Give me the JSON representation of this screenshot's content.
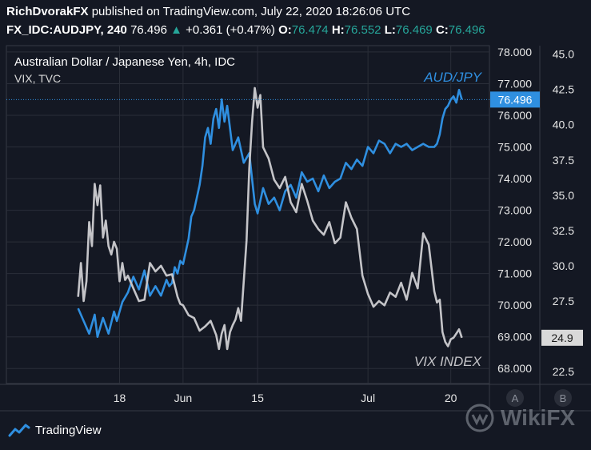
{
  "header": {
    "author": "RichDvorakFX",
    "published": "published on TradingView.com, July 22, 2020 18:26:06 UTC",
    "symbol": "FX_IDC:AUDJPY, 240",
    "last": "76.496",
    "change_arrow": "▲",
    "change": "+0.361 (+0.47%)",
    "o_label": "O:",
    "o_value": "76.474",
    "h_label": "H:",
    "h_value": "76.552",
    "l_label": "L:",
    "l_value": "76.469",
    "c_label": "C:",
    "c_value": "76.496"
  },
  "footer": {
    "brand": "TradingView",
    "brand_icon": "tradingview-logo-icon"
  },
  "watermark": {
    "text": "WikiFX",
    "icon": "wikifx-logo-icon"
  },
  "colors": {
    "background": "#141823",
    "grid": "#2a2e39",
    "audjpy": "#2f8fe0",
    "vix": "#c4c4c8",
    "up": "#26a69a",
    "axis_text": "#e6e6e6"
  },
  "chart_data": {
    "type": "line",
    "title": "Australian Dollar / Japanese Yen, 4h, IDC",
    "subtitle": "VIX, TVC",
    "x_tick_labels": [
      "18",
      "Jun",
      "15",
      "Jul",
      "20"
    ],
    "x_ticks_x": [
      41,
      64,
      91,
      131,
      161
    ],
    "x_range": [
      0,
      175
    ],
    "grid": true,
    "left_axis": {
      "series": "AUD/JPY",
      "range": [
        67.5,
        78.2
      ],
      "ticks": [
        68.0,
        69.0,
        70.0,
        71.0,
        72.0,
        73.0,
        74.0,
        75.0,
        76.0,
        77.0,
        78.0
      ]
    },
    "right_axis": {
      "series": "VIX INDEX",
      "range": [
        21.6,
        45.6
      ],
      "ticks": [
        22.5,
        25.0,
        27.5,
        30.0,
        32.5,
        35.0,
        37.5,
        40.0,
        42.5,
        45.0
      ]
    },
    "last_price_label": "76.496",
    "last_price_value": 76.496,
    "vix_last_label": "24.9",
    "vix_last_value": 24.9,
    "series": [
      {
        "name": "AUD/JPY",
        "axis": "left",
        "x": [
          26,
          28,
          30,
          32,
          33,
          35,
          37,
          39,
          40,
          42,
          44,
          46,
          48,
          50,
          52,
          54,
          56,
          58,
          59,
          60,
          61,
          62,
          63,
          64,
          66,
          67,
          68,
          70,
          71,
          72,
          73,
          74,
          75,
          76,
          77,
          78,
          79,
          80,
          82,
          84,
          86,
          88,
          90,
          91,
          93,
          95,
          97,
          99,
          101,
          103,
          105,
          107,
          109,
          111,
          113,
          115,
          117,
          119,
          121,
          123,
          125,
          127,
          129,
          131,
          133,
          135,
          137,
          139,
          141,
          143,
          145,
          147,
          149,
          151,
          153,
          155,
          156,
          157,
          158,
          159,
          160,
          161,
          162,
          163,
          164,
          165
        ],
        "values": [
          69.9,
          69.5,
          69.1,
          69.7,
          69.0,
          69.6,
          69.1,
          69.8,
          69.5,
          70.1,
          70.4,
          70.9,
          70.5,
          71.1,
          70.3,
          70.6,
          70.3,
          70.8,
          70.6,
          70.7,
          71.2,
          71.0,
          71.4,
          71.3,
          72.1,
          72.8,
          73.0,
          73.8,
          74.4,
          75.3,
          75.6,
          75.1,
          75.9,
          76.2,
          75.6,
          76.5,
          75.8,
          76.3,
          74.9,
          75.3,
          74.5,
          74.8,
          73.2,
          72.9,
          73.7,
          73.2,
          73.4,
          73.0,
          73.6,
          73.8,
          73.4,
          74.2,
          73.9,
          74.0,
          73.6,
          74.1,
          73.7,
          73.9,
          74.0,
          74.5,
          74.3,
          74.6,
          74.4,
          75.0,
          74.8,
          75.2,
          75.1,
          74.8,
          75.1,
          75.0,
          75.1,
          74.9,
          75.0,
          75.1,
          75.0,
          75.0,
          75.1,
          75.4,
          75.9,
          76.2,
          76.3,
          76.5,
          76.6,
          76.4,
          76.8,
          76.5
        ]
      },
      {
        "name": "VIX INDEX",
        "axis": "right",
        "x": [
          26,
          27,
          28,
          29,
          30,
          31,
          32,
          33,
          34,
          35,
          36,
          37,
          38,
          39,
          40,
          41,
          42,
          43,
          44,
          46,
          48,
          50,
          52,
          54,
          56,
          58,
          60,
          62,
          63,
          64,
          66,
          68,
          70,
          72,
          74,
          76,
          77,
          78,
          79,
          80,
          81,
          82,
          83,
          84,
          85,
          86,
          87,
          88,
          89,
          90,
          91,
          92,
          93,
          95,
          97,
          99,
          101,
          103,
          105,
          107,
          109,
          111,
          113,
          115,
          117,
          119,
          121,
          123,
          125,
          127,
          129,
          131,
          133,
          135,
          137,
          139,
          141,
          143,
          145,
          147,
          149,
          151,
          153,
          155,
          156,
          157,
          158,
          159,
          160,
          161,
          162,
          163,
          164,
          165
        ],
        "values": [
          27.8,
          30.2,
          27.5,
          28.9,
          33.1,
          31.4,
          35.8,
          34.3,
          35.7,
          32.0,
          33.2,
          31.4,
          30.8,
          31.7,
          31.2,
          28.9,
          30.2,
          29.0,
          29.3,
          28.4,
          27.5,
          27.6,
          30.2,
          29.6,
          30.0,
          29.3,
          29.4,
          27.8,
          27.3,
          27.2,
          26.5,
          26.3,
          25.4,
          25.7,
          26.1,
          25.1,
          24.1,
          25.2,
          25.8,
          24.1,
          25.3,
          25.8,
          26.2,
          27.0,
          26.1,
          28.9,
          31.8,
          36.9,
          40.2,
          42.6,
          41.2,
          42.1,
          38.4,
          37.6,
          36.1,
          35.5,
          36.3,
          34.5,
          33.8,
          35.8,
          34.6,
          33.2,
          32.6,
          32.2,
          33.1,
          31.6,
          32.0,
          34.5,
          33.4,
          32.6,
          29.3,
          28.0,
          27.1,
          27.5,
          27.2,
          28.1,
          27.8,
          28.8,
          27.6,
          29.5,
          28.4,
          32.3,
          31.5,
          28.2,
          27.4,
          27.6,
          25.3,
          24.6,
          24.3,
          24.8,
          24.9,
          25.2,
          25.5,
          24.9
        ]
      }
    ],
    "annotations": [
      "AUD/JPY",
      "VIX INDEX"
    ],
    "bottom_buttons": [
      "A",
      "B"
    ]
  }
}
